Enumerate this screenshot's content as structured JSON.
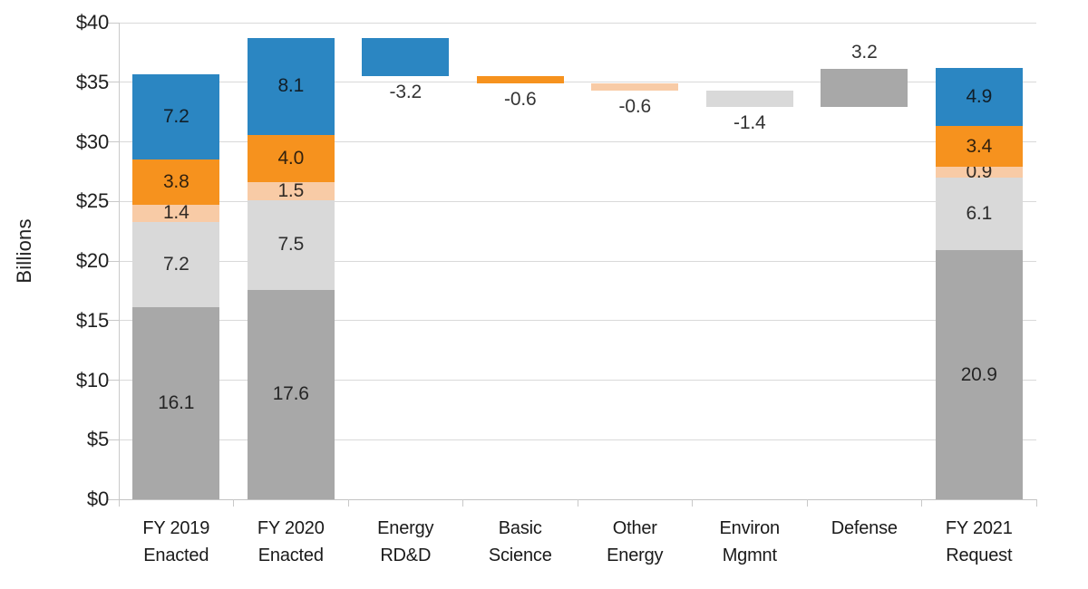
{
  "chart_data": {
    "type": "bar",
    "variant": "stacked-bar-waterfall",
    "title": "",
    "ylabel": "Billions",
    "xlabel": "",
    "ylim": [
      0,
      40
    ],
    "grid": true,
    "legend_position": "none",
    "yticks": [
      {
        "value": 0,
        "label": "$0"
      },
      {
        "value": 5,
        "label": "$5"
      },
      {
        "value": 10,
        "label": "$10"
      },
      {
        "value": 15,
        "label": "$15"
      },
      {
        "value": 20,
        "label": "$20"
      },
      {
        "value": 25,
        "label": "$25"
      },
      {
        "value": 30,
        "label": "$30"
      },
      {
        "value": 35,
        "label": "$35"
      },
      {
        "value": 40,
        "label": "$40"
      }
    ],
    "colors": {
      "blue": "#2b86c2",
      "orange": "#f6921e",
      "peach": "#f8cba6",
      "lightgray": "#d9d9d9",
      "gray": "#a8a8a8"
    },
    "columns": [
      {
        "label_lines": [
          "FY 2019",
          "Enacted"
        ],
        "total": 35.7,
        "segments": [
          {
            "color": "gray",
            "from": 0,
            "to": 16.1,
            "value": 16.1,
            "label": "16.1",
            "label_pos": "inside"
          },
          {
            "color": "lightgray",
            "from": 16.1,
            "to": 23.3,
            "value": 7.2,
            "label": "7.2",
            "label_pos": "inside"
          },
          {
            "color": "peach",
            "from": 23.3,
            "to": 24.7,
            "value": 1.4,
            "label": "1.4",
            "label_pos": "inside"
          },
          {
            "color": "orange",
            "from": 24.7,
            "to": 28.5,
            "value": 3.8,
            "label": "3.8",
            "label_pos": "inside"
          },
          {
            "color": "blue",
            "from": 28.5,
            "to": 35.7,
            "value": 7.2,
            "label": "7.2",
            "label_pos": "inside"
          }
        ]
      },
      {
        "label_lines": [
          "FY 2020",
          "Enacted"
        ],
        "total": 38.7,
        "segments": [
          {
            "color": "gray",
            "from": 0,
            "to": 17.6,
            "value": 17.6,
            "label": "17.6",
            "label_pos": "inside"
          },
          {
            "color": "lightgray",
            "from": 17.6,
            "to": 25.1,
            "value": 7.5,
            "label": "7.5",
            "label_pos": "inside"
          },
          {
            "color": "peach",
            "from": 25.1,
            "to": 26.6,
            "value": 1.5,
            "label": "1.5",
            "label_pos": "inside"
          },
          {
            "color": "orange",
            "from": 26.6,
            "to": 30.6,
            "value": 4.0,
            "label": "4.0",
            "label_pos": "inside"
          },
          {
            "color": "blue",
            "from": 30.6,
            "to": 38.7,
            "value": 8.1,
            "label": "8.1",
            "label_pos": "inside"
          }
        ]
      },
      {
        "label_lines": [
          "Energy",
          "RD&D"
        ],
        "segments": [
          {
            "color": "blue",
            "from": 35.5,
            "to": 38.7,
            "value": -3.2,
            "label": "-3.2",
            "label_pos": "below"
          }
        ]
      },
      {
        "label_lines": [
          "Basic",
          "Science"
        ],
        "segments": [
          {
            "color": "orange",
            "from": 34.9,
            "to": 35.5,
            "value": -0.6,
            "label": "-0.6",
            "label_pos": "below"
          }
        ]
      },
      {
        "label_lines": [
          "Other",
          "Energy"
        ],
        "segments": [
          {
            "color": "peach",
            "from": 34.3,
            "to": 34.9,
            "value": -0.6,
            "label": "-0.6",
            "label_pos": "below"
          }
        ]
      },
      {
        "label_lines": [
          "Environ",
          "Mgmnt"
        ],
        "segments": [
          {
            "color": "lightgray",
            "from": 32.9,
            "to": 34.3,
            "value": -1.4,
            "label": "-1.4",
            "label_pos": "below"
          }
        ]
      },
      {
        "label_lines": [
          "Defense"
        ],
        "segments": [
          {
            "color": "gray",
            "from": 32.9,
            "to": 36.1,
            "value": 3.2,
            "label": "3.2",
            "label_pos": "above"
          }
        ]
      },
      {
        "label_lines": [
          "FY 2021",
          "Request"
        ],
        "total": 36.2,
        "segments": [
          {
            "color": "gray",
            "from": 0,
            "to": 20.9,
            "value": 20.9,
            "label": "20.9",
            "label_pos": "inside"
          },
          {
            "color": "lightgray",
            "from": 20.9,
            "to": 27.0,
            "value": 6.1,
            "label": "6.1",
            "label_pos": "inside"
          },
          {
            "color": "peach",
            "from": 27.0,
            "to": 27.9,
            "value": 0.9,
            "label": "0.9",
            "label_pos": "inside"
          },
          {
            "color": "orange",
            "from": 27.9,
            "to": 31.3,
            "value": 3.4,
            "label": "3.4",
            "label_pos": "inside"
          },
          {
            "color": "blue",
            "from": 31.3,
            "to": 36.2,
            "value": 4.9,
            "label": "4.9",
            "label_pos": "inside"
          }
        ]
      }
    ]
  }
}
